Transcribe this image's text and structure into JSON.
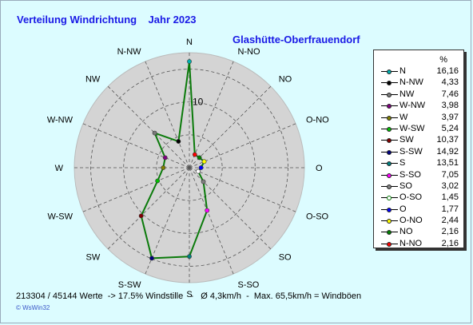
{
  "title": "Verteilung Windrichtung    Jahr 2023",
  "station": "Glashütte-Oberfrauendorf",
  "footer": "213304 / 45144 Werte  -> 17.5% Windstille   -   Ø 4,3km/h  -  Max. 65,5km/h = Windböen",
  "credit": "© WsWin32",
  "legend_unit": "%",
  "chart_data": {
    "type": "radar",
    "directions": [
      "N",
      "N-NO",
      "NO",
      "O-NO",
      "O",
      "O-SO",
      "SO",
      "S-SO",
      "S",
      "S-SW",
      "SW",
      "W-SW",
      "W",
      "W-NW",
      "NW",
      "N-NW"
    ],
    "series": [
      {
        "name": "N",
        "value": 16.16,
        "label": "16,16",
        "color": "#00b0b0"
      },
      {
        "name": "N-NW",
        "value": 4.33,
        "label": "4,33",
        "color": "#000000"
      },
      {
        "name": "NW",
        "value": 7.46,
        "label": "7,46",
        "color": "#7a7a7a"
      },
      {
        "name": "W-NW",
        "value": 3.98,
        "label": "3,98",
        "color": "#800080"
      },
      {
        "name": "W",
        "value": 3.97,
        "label": "3,97",
        "color": "#808000"
      },
      {
        "name": "W-SW",
        "value": 5.24,
        "label": "5,24",
        "color": "#00c000"
      },
      {
        "name": "SW",
        "value": 10.37,
        "label": "10,37",
        "color": "#800000"
      },
      {
        "name": "S-SW",
        "value": 14.92,
        "label": "14,92",
        "color": "#000080"
      },
      {
        "name": "S",
        "value": 13.51,
        "label": "13,51",
        "color": "#008080"
      },
      {
        "name": "S-SO",
        "value": 7.05,
        "label": "7,05",
        "color": "#ff00ff"
      },
      {
        "name": "SO",
        "value": 3.02,
        "label": "3,02",
        "color": "#808080"
      },
      {
        "name": "O-SO",
        "value": 1.45,
        "label": "1,45",
        "color": "#ffffff"
      },
      {
        "name": "O",
        "value": 1.77,
        "label": "1,77",
        "color": "#0000ff"
      },
      {
        "name": "O-NO",
        "value": 2.44,
        "label": "2,44",
        "color": "#ffff00"
      },
      {
        "name": "NO",
        "value": 2.16,
        "label": "2,16",
        "color": "#008000"
      },
      {
        "name": "N-NO",
        "value": 2.16,
        "label": "2,16",
        "color": "#ff0000"
      }
    ],
    "r_max": 17.5,
    "r_tick": 10,
    "r_tick_label": "10",
    "rings": [
      5,
      10,
      15
    ],
    "line_color": "#0a7a0a",
    "disc_color": "#d4d4d4",
    "grid": true,
    "legend_position": "right"
  }
}
